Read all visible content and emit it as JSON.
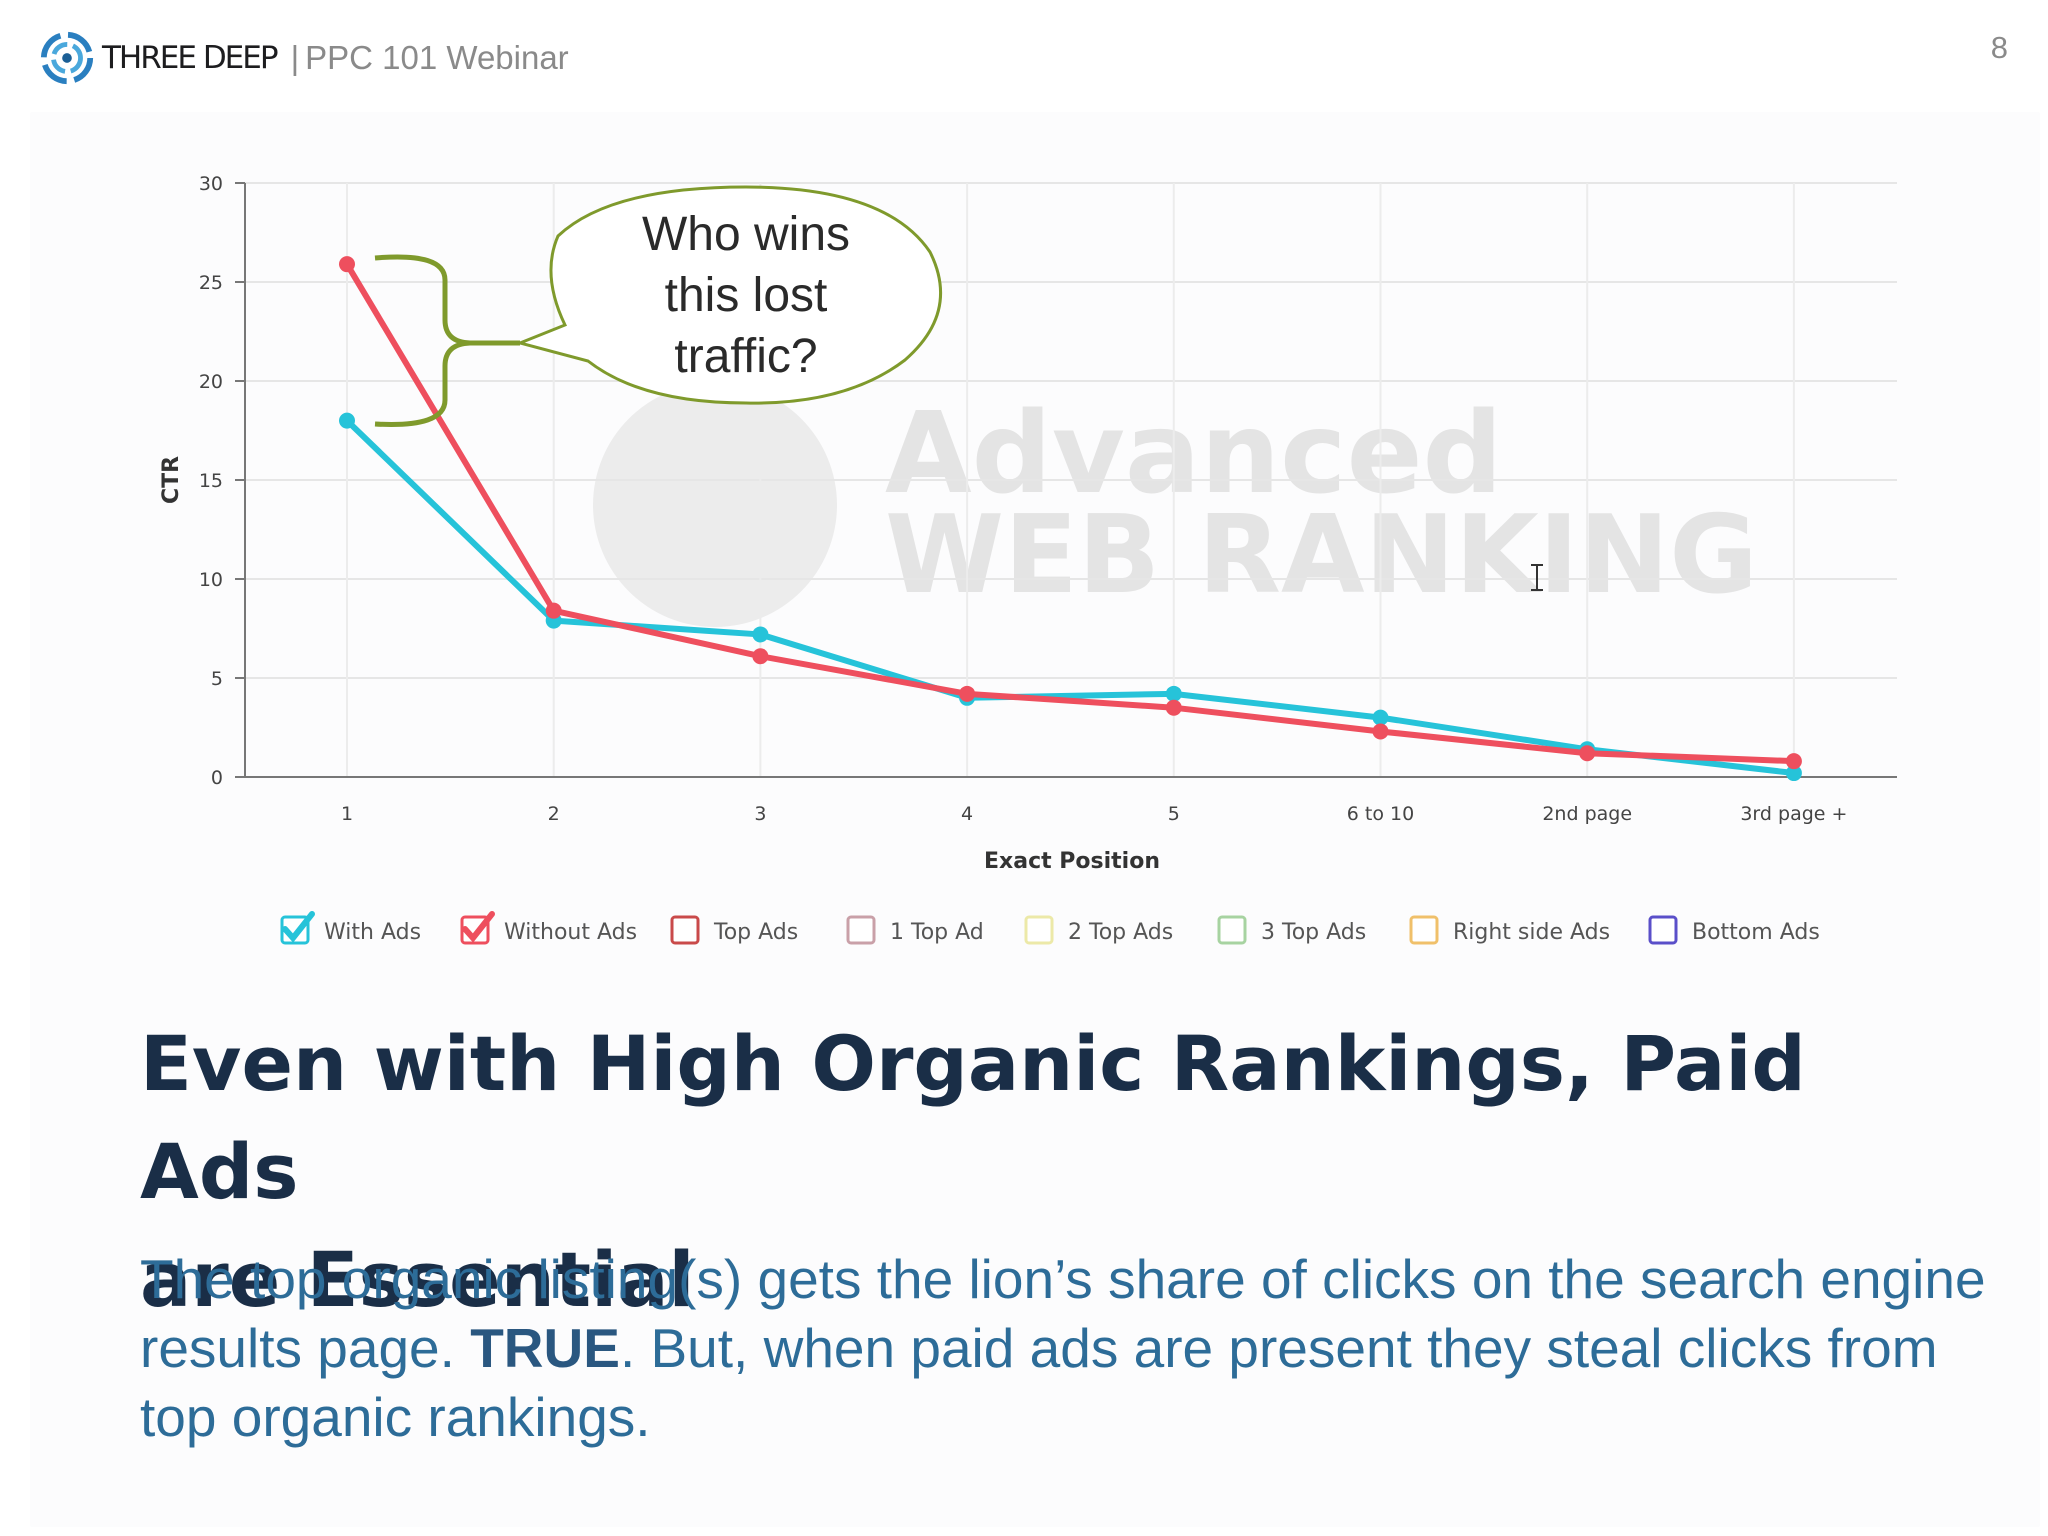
{
  "header": {
    "brand": "THREE DEEP",
    "separator": "|",
    "subtitle": "PPC 101 Webinar",
    "page_number": "8"
  },
  "colors": {
    "with_ads": "#26c3d9",
    "without_ads": "#ee4f5e",
    "callout": "#7f9a2c",
    "headline": "#1a2e47",
    "body": "#2d6c98"
  },
  "chart_data": {
    "type": "line",
    "xlabel": "Exact Position",
    "ylabel": "CTR",
    "ylim": [
      0,
      30
    ],
    "yticks": [
      "0",
      "5",
      "10",
      "15",
      "20",
      "25",
      "30"
    ],
    "categories": [
      "1",
      "2",
      "3",
      "4",
      "5",
      "6 to 10",
      "2nd page",
      "3rd page +"
    ],
    "series": [
      {
        "name": "With Ads",
        "color": "#26c3d9",
        "values": [
          18.0,
          7.9,
          7.2,
          4.0,
          4.2,
          3.0,
          1.4,
          0.2
        ]
      },
      {
        "name": "Without Ads",
        "color": "#ee4f5e",
        "values": [
          25.9,
          8.4,
          6.1,
          4.2,
          3.5,
          2.3,
          1.2,
          0.8
        ]
      }
    ],
    "legend": [
      {
        "label": "With Ads",
        "checked": true,
        "color": "#26c3d9"
      },
      {
        "label": "Without Ads",
        "checked": true,
        "color": "#ee4f5e"
      },
      {
        "label": "Top Ads",
        "checked": false,
        "color": "#c94a4a"
      },
      {
        "label": "1 Top Ad",
        "checked": false,
        "color": "#c9a0a8"
      },
      {
        "label": "2 Top Ads",
        "checked": false,
        "color": "#ece9a8"
      },
      {
        "label": "3 Top Ads",
        "checked": false,
        "color": "#a7d3a1"
      },
      {
        "label": "Right side Ads",
        "checked": false,
        "color": "#f0c06a"
      },
      {
        "label": "Bottom Ads",
        "checked": false,
        "color": "#5a4fc9"
      }
    ],
    "legend_position": "bottom",
    "grid": true,
    "watermark": {
      "line1": "Advanced",
      "line2": "WEB RANKING"
    },
    "annotation": {
      "lines": [
        "Who wins",
        "this lost",
        "traffic?"
      ]
    }
  },
  "headline": {
    "line1": "Even with High Organic Rankings, Paid Ads",
    "line2": "are Essential"
  },
  "body": {
    "part1": "The top organic listing(s) gets the lion’s share of clicks on the search engine results page. ",
    "emphasis": "TRUE",
    "part2": ". But, when paid ads are present they steal clicks from top organic rankings."
  }
}
